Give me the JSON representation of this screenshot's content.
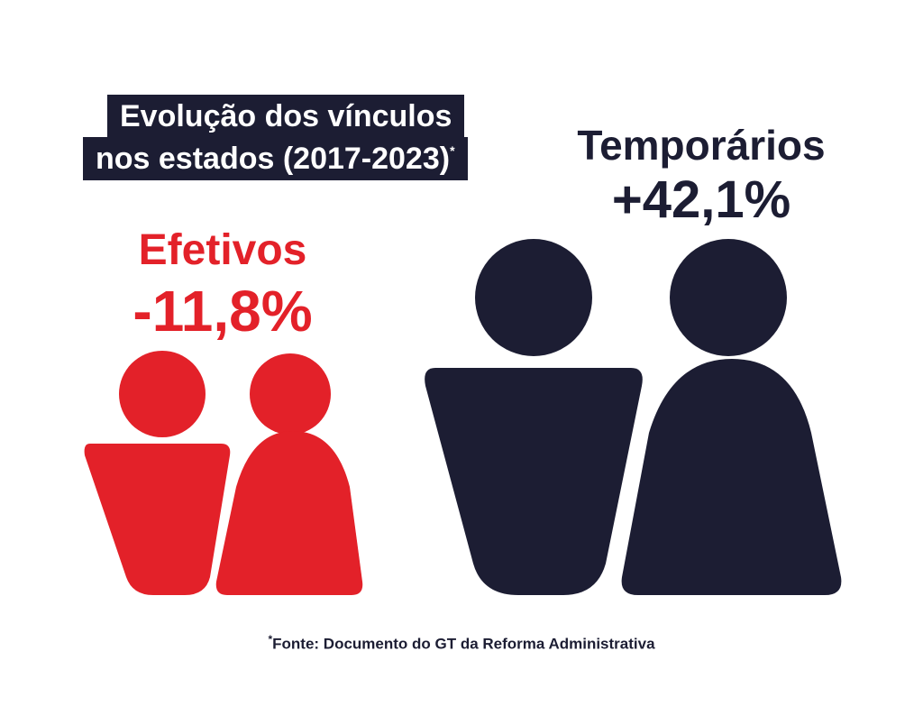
{
  "title": {
    "lines": [
      "Evolução dos vínculos",
      "nos estados (2017-2023)"
    ],
    "mark": "*"
  },
  "groups": [
    {
      "label": "Efetivos",
      "change": "-11,8%"
    },
    {
      "label": "Temporários",
      "change": "+42,1%"
    }
  ],
  "footnote": {
    "mark": "*",
    "text": "Fonte: Documento do GT da Reforma Administrativa"
  }
}
